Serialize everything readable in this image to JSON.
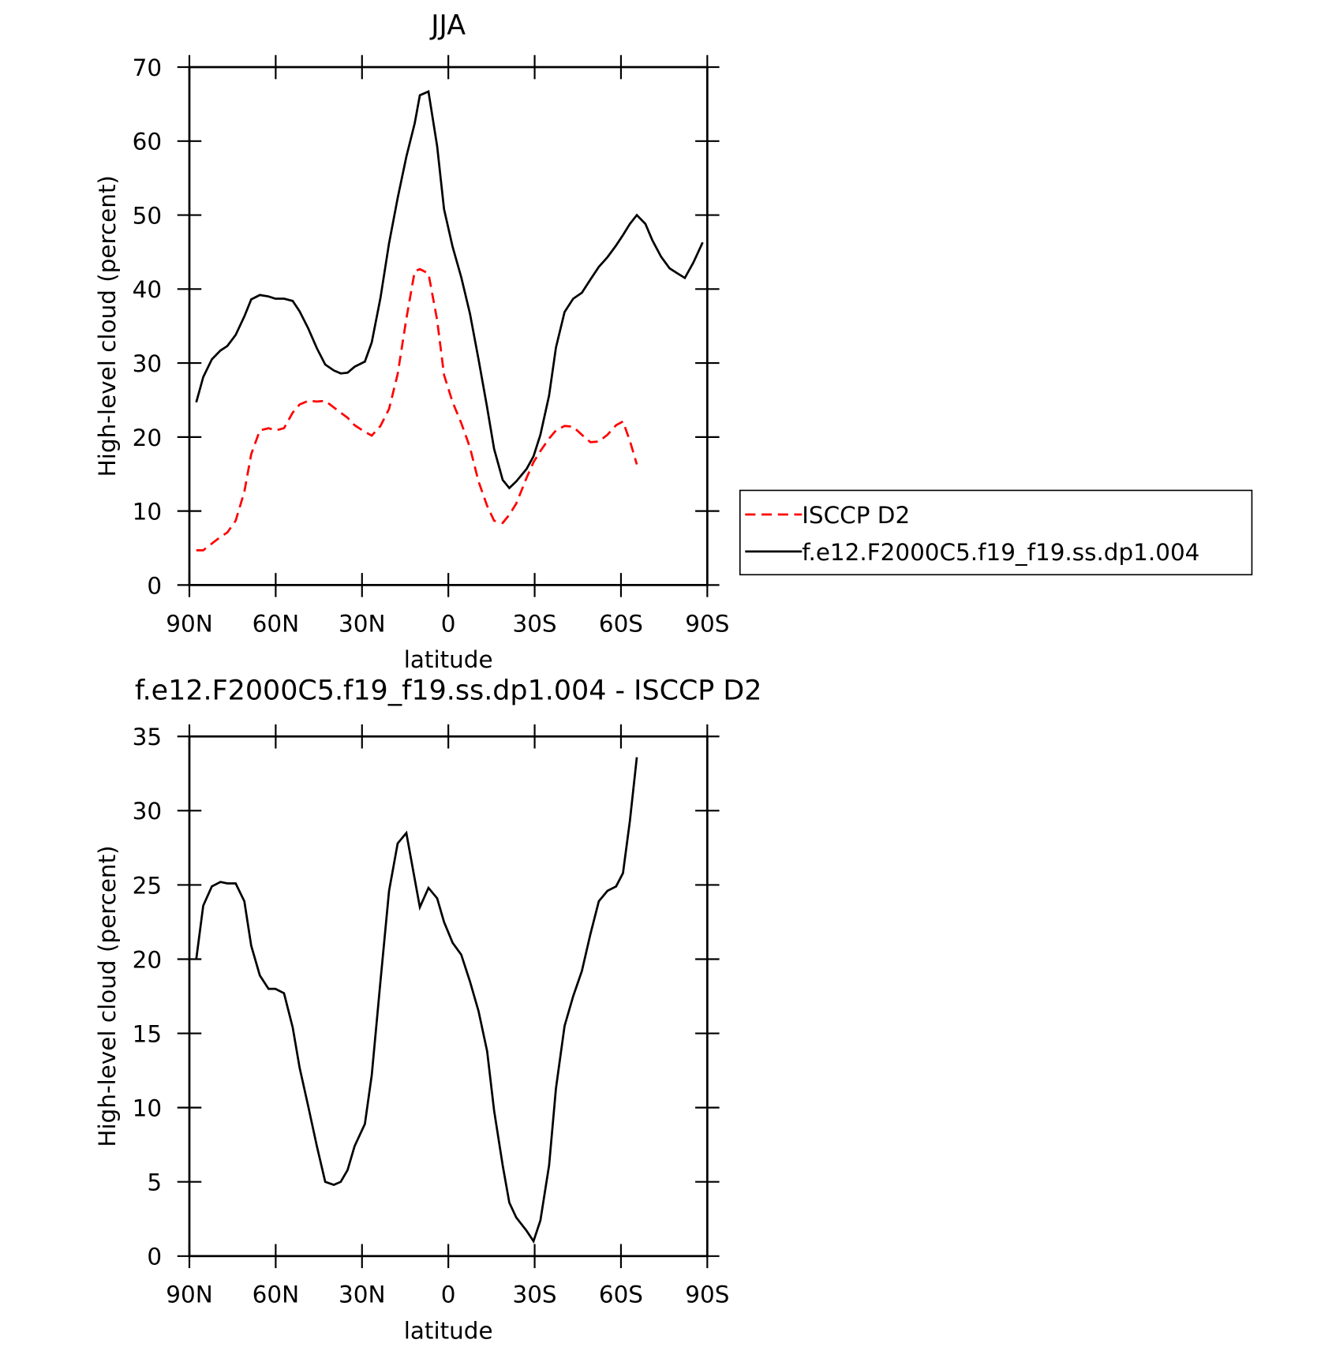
{
  "chart_data": [
    {
      "type": "line",
      "title": "JJA",
      "xlabel": "latitude",
      "ylabel": "High-level cloud (percent)",
      "x": [
        87.6,
        85.2,
        82.2,
        79.2,
        76.8,
        73.9,
        70.9,
        68.5,
        65.5,
        62.5,
        60.1,
        57.1,
        54.1,
        51.7,
        48.7,
        45.7,
        42.8,
        39.8,
        37.4,
        35.0,
        32.6,
        29.0,
        26.6,
        23.6,
        20.6,
        17.6,
        14.6,
        11.7,
        9.9,
        6.9,
        3.9,
        1.5,
        -1.5,
        -4.5,
        -7.5,
        -10.5,
        -13.5,
        -15.9,
        -18.9,
        -21.2,
        -23.6,
        -27.2,
        -29.6,
        -32.0,
        -35.0,
        -37.4,
        -40.4,
        -43.4,
        -46.4,
        -49.4,
        -52.3,
        -55.3,
        -58.3,
        -60.7,
        -63.1,
        -65.5,
        -68.5,
        -70.9,
        -73.9,
        -76.9,
        -79.7,
        -82.2,
        -85.2,
        -88.4
      ],
      "series": [
        {
          "name": "ISCCP D2",
          "color": "#ff0000",
          "line_style": "dashed",
          "values": [
            4.7,
            4.7,
            5.6,
            6.5,
            7.1,
            8.7,
            12.6,
            17.7,
            20.9,
            21.2,
            20.9,
            21.2,
            23.3,
            24.4,
            24.9,
            24.8,
            24.9,
            24.0,
            23.3,
            22.6,
            21.6,
            20.7,
            20.2,
            21.5,
            23.8,
            28.5,
            36.0,
            42.4,
            42.7,
            42.1,
            35.8,
            28.4,
            24.7,
            21.9,
            18.6,
            14.0,
            10.7,
            8.7,
            8.4,
            9.5,
            11.0,
            14.5,
            16.6,
            18.1,
            19.8,
            20.9,
            21.5,
            21.4,
            20.3,
            19.3,
            19.4,
            20.3,
            21.6,
            22.1,
            19.5,
            16.3,
            null,
            null,
            null,
            null,
            null,
            null,
            null,
            null
          ]
        },
        {
          "name": "f.e12.F2000C5.f19_f19.ss.dp1.004",
          "color": "#000000",
          "line_style": "solid",
          "values": [
            24.7,
            28.1,
            30.5,
            31.7,
            32.3,
            33.8,
            36.3,
            38.6,
            39.2,
            39.0,
            38.7,
            38.7,
            38.4,
            37.0,
            34.7,
            32.0,
            29.8,
            29.0,
            28.6,
            28.7,
            29.5,
            30.2,
            32.8,
            38.8,
            46.2,
            52.3,
            57.9,
            62.4,
            66.2,
            66.7,
            59.3,
            50.8,
            45.7,
            41.6,
            36.7,
            30.5,
            24.0,
            18.4,
            14.2,
            13.1,
            14.0,
            15.7,
            17.4,
            20.3,
            25.6,
            32.1,
            36.9,
            38.7,
            39.5,
            41.3,
            43.0,
            44.3,
            45.9,
            47.3,
            48.8,
            50.0,
            48.8,
            46.6,
            44.4,
            42.8,
            42.1,
            41.5,
            43.6,
            46.3
          ]
        }
      ],
      "xlim": [
        90,
        -90
      ],
      "xticks": [
        {
          "value": 90,
          "label": "90N"
        },
        {
          "value": 60,
          "label": "60N"
        },
        {
          "value": 30,
          "label": "30N"
        },
        0,
        {
          "value": -30,
          "label": "30S"
        },
        {
          "value": -60,
          "label": "60S"
        },
        {
          "value": -90,
          "label": "90S"
        }
      ],
      "ylim": [
        0,
        70
      ],
      "yticks": [
        0,
        10,
        20,
        30,
        40,
        50,
        60,
        70
      ],
      "legend": "right"
    },
    {
      "type": "line",
      "title": "f.e12.F2000C5.f19_f19.ss.dp1.004 - ISCCP D2",
      "xlabel": "latitude",
      "ylabel": "High-level cloud (percent)",
      "x": [
        87.6,
        85.2,
        82.2,
        79.2,
        76.8,
        73.9,
        70.9,
        68.5,
        65.5,
        62.5,
        60.1,
        57.1,
        54.1,
        51.7,
        48.7,
        45.7,
        42.8,
        39.8,
        37.4,
        35.0,
        32.6,
        29.0,
        26.6,
        23.6,
        20.6,
        17.6,
        14.6,
        11.7,
        9.9,
        6.9,
        3.9,
        1.5,
        -1.5,
        -4.5,
        -7.5,
        -10.5,
        -13.5,
        -15.9,
        -18.9,
        -21.2,
        -23.6,
        -27.2,
        -29.6,
        -32.0,
        -35.0,
        -37.4,
        -40.4,
        -43.4,
        -46.4,
        -49.4,
        -52.3,
        -55.3,
        -58.3,
        -60.7,
        -63.1,
        -65.5
      ],
      "series": [
        {
          "color": "#000000",
          "line_style": "solid",
          "values": [
            20.0,
            23.6,
            24.9,
            25.2,
            25.1,
            25.1,
            23.9,
            20.9,
            18.9,
            18.0,
            18.0,
            17.7,
            15.4,
            12.7,
            10.1,
            7.4,
            5.0,
            4.8,
            5.0,
            5.8,
            7.4,
            8.9,
            12.2,
            18.5,
            24.6,
            27.8,
            28.5,
            25.4,
            23.5,
            24.8,
            24.1,
            22.5,
            21.1,
            20.3,
            18.5,
            16.5,
            13.8,
            9.8,
            6.1,
            3.6,
            2.6,
            1.7,
            1.0,
            2.4,
            6.1,
            11.3,
            15.5,
            17.5,
            19.2,
            21.7,
            23.9,
            24.6,
            24.9,
            25.8,
            29.3,
            33.6
          ]
        }
      ],
      "xlim": [
        90,
        -90
      ],
      "xticks": [
        {
          "value": 90,
          "label": "90N"
        },
        {
          "value": 60,
          "label": "60N"
        },
        {
          "value": 30,
          "label": "30N"
        },
        0,
        {
          "value": -30,
          "label": "30S"
        },
        {
          "value": -60,
          "label": "60S"
        },
        {
          "value": -90,
          "label": "90S"
        }
      ],
      "ylim": [
        0,
        35
      ],
      "yticks": [
        0,
        5,
        10,
        15,
        20,
        25,
        30,
        35
      ]
    }
  ]
}
